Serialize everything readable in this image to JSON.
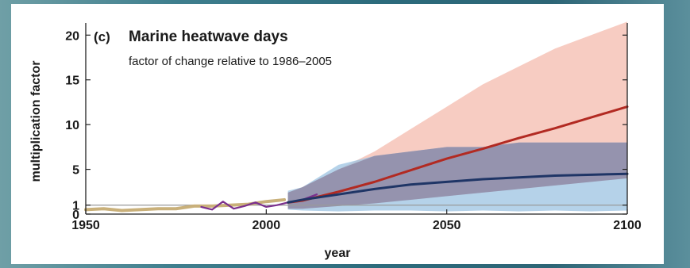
{
  "chart_data": {
    "type": "area",
    "panel_letter": "(c)",
    "title": "Marine heatwave days",
    "subtitle": "factor of change relative to 1986–2005",
    "xlabel": "year",
    "ylabel": "multiplication factor",
    "xlim": [
      1950,
      2100
    ],
    "ylim": [
      0,
      21
    ],
    "x_ticks": [
      "1950",
      "2000",
      "2050",
      "2100"
    ],
    "y_ticks": [
      "0",
      "1",
      "5",
      "10",
      "15",
      "20"
    ],
    "reference_line": 1,
    "colors": {
      "observed_tan": "#c9b07a",
      "observed_purple": "#7b2f8e",
      "high_line": "#b22a22",
      "high_band": "#f6c3b7",
      "low_line": "#1f3566",
      "low_band": "#9cc3e2",
      "overlap_band": "#8f8aa6"
    },
    "series": [
      {
        "key": "observed_tan",
        "x": [
          1950,
          1955,
          1960,
          1965,
          1970,
          1975,
          1980,
          1985,
          1990,
          1995,
          2000,
          2005
        ],
        "values": [
          0.5,
          0.6,
          0.4,
          0.5,
          0.6,
          0.6,
          0.9,
          0.9,
          1.0,
          1.1,
          1.4,
          1.6
        ]
      },
      {
        "key": "observed_purple",
        "x": [
          1982,
          1985,
          1988,
          1991,
          1994,
          1997,
          2000,
          2003,
          2006,
          2010,
          2014
        ],
        "values": [
          0.8,
          0.5,
          1.4,
          0.6,
          0.9,
          1.3,
          0.8,
          1.0,
          1.3,
          1.6,
          2.2
        ]
      },
      {
        "key": "high_line",
        "x": [
          2006,
          2010,
          2020,
          2030,
          2040,
          2050,
          2060,
          2070,
          2080,
          2090,
          2100
        ],
        "values": [
          1.3,
          1.5,
          2.5,
          3.6,
          4.9,
          6.2,
          7.3,
          8.5,
          9.6,
          10.8,
          12.0
        ]
      },
      {
        "key": "low_line",
        "x": [
          2006,
          2010,
          2020,
          2030,
          2040,
          2050,
          2060,
          2070,
          2080,
          2090,
          2100
        ],
        "values": [
          1.3,
          1.6,
          2.2,
          2.8,
          3.3,
          3.6,
          3.9,
          4.1,
          4.3,
          4.4,
          4.5
        ]
      }
    ],
    "bands": [
      {
        "key": "high_band",
        "x": [
          2006,
          2010,
          2020,
          2030,
          2040,
          2050,
          2060,
          2070,
          2080,
          2090,
          2100
        ],
        "lower": [
          0.6,
          0.6,
          0.9,
          1.2,
          1.6,
          2.0,
          2.4,
          2.8,
          3.2,
          3.6,
          4.0
        ],
        "upper": [
          2.4,
          3.0,
          5.0,
          7.0,
          9.5,
          12.0,
          14.5,
          16.5,
          18.5,
          20.0,
          21.5
        ]
      },
      {
        "key": "low_band",
        "x": [
          2006,
          2010,
          2020,
          2030,
          2040,
          2050,
          2060,
          2070,
          2080,
          2090,
          2100
        ],
        "lower": [
          0.5,
          0.4,
          0.3,
          0.4,
          0.4,
          0.3,
          0.4,
          0.3,
          0.4,
          0.3,
          0.4
        ],
        "upper": [
          2.6,
          3.0,
          5.5,
          6.5,
          7.0,
          7.5,
          7.5,
          8.0,
          8.0,
          8.0,
          8.0
        ]
      }
    ]
  }
}
